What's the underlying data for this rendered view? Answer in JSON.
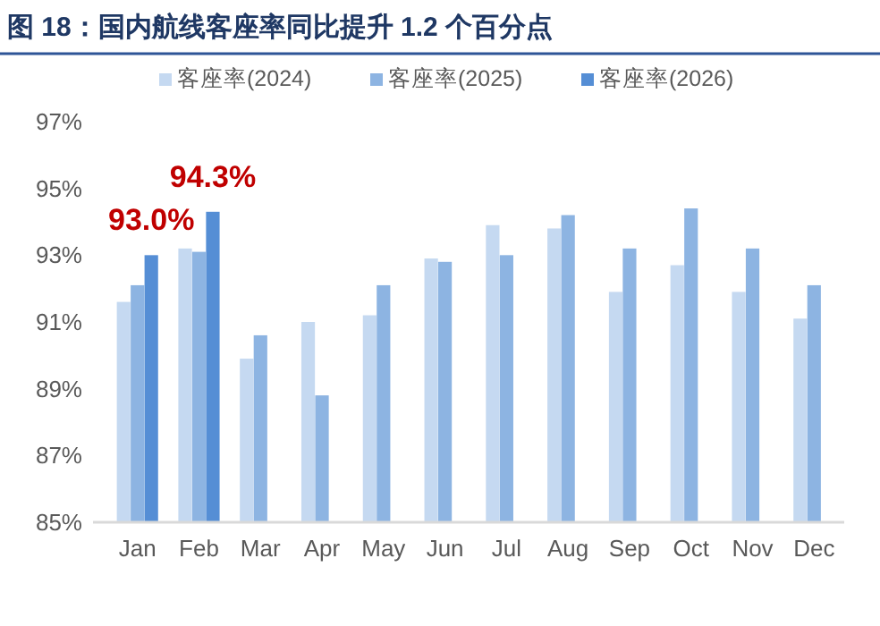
{
  "chart_data": {
    "type": "bar",
    "title": "图 18：国内航线客座率同比提升 1.2 个百分点",
    "categories": [
      "Jan",
      "Feb",
      "Mar",
      "Apr",
      "May",
      "Jun",
      "Jul",
      "Aug",
      "Sep",
      "Oct",
      "Nov",
      "Dec"
    ],
    "series": [
      {
        "name": "客座率(2024)",
        "color": "#c5d9f1",
        "values": [
          91.6,
          93.2,
          89.9,
          91.0,
          91.2,
          92.9,
          93.9,
          93.8,
          91.9,
          92.7,
          91.9,
          91.1
        ]
      },
      {
        "name": "客座率(2025)",
        "color": "#8db4e2",
        "values": [
          92.1,
          93.1,
          90.6,
          88.8,
          92.1,
          92.8,
          93.0,
          94.2,
          93.2,
          94.4,
          93.2,
          92.1
        ]
      },
      {
        "name": "客座率(2026)",
        "color": "#558ed5",
        "values": [
          93.0,
          94.3,
          null,
          null,
          null,
          null,
          null,
          null,
          null,
          null,
          null,
          null
        ],
        "value_labels": [
          "93.0%",
          "94.3%",
          null,
          null,
          null,
          null,
          null,
          null,
          null,
          null,
          null,
          null
        ]
      }
    ],
    "ylim": [
      85,
      97
    ],
    "yticks": [
      {
        "value": 85,
        "label": "85%"
      },
      {
        "value": 87,
        "label": "87%"
      },
      {
        "value": 89,
        "label": "89%"
      },
      {
        "value": 91,
        "label": "91%"
      },
      {
        "value": 93,
        "label": "93%"
      },
      {
        "value": 95,
        "label": "95%"
      },
      {
        "value": 97,
        "label": "97%"
      }
    ],
    "grid": false,
    "legend": "top"
  }
}
